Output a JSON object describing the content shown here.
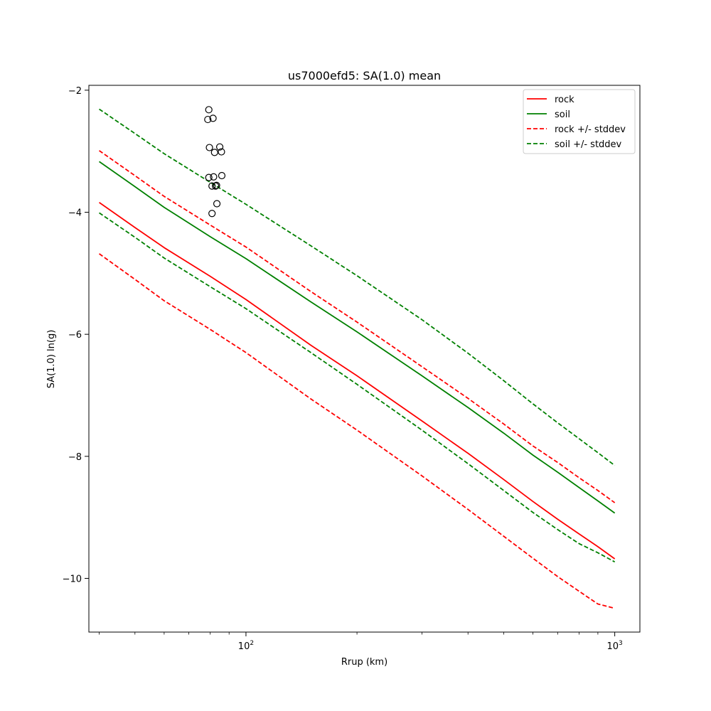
{
  "chart_data": {
    "type": "line",
    "title": "us7000efd5: SA(1.0) mean",
    "xlabel": "Rrup (km)",
    "ylabel": "SA(1.0) ln(g)",
    "xscale": "log",
    "xlim": [
      37.5,
      1170
    ],
    "ylim": [
      -10.88,
      -1.92
    ],
    "x_ticks": [
      {
        "value": 100,
        "label": "10",
        "exp": "2"
      },
      {
        "value": 1000,
        "label": "10",
        "exp": "3"
      }
    ],
    "y_ticks": [
      {
        "value": -2,
        "label": "−2"
      },
      {
        "value": -4,
        "label": "−4"
      },
      {
        "value": -6,
        "label": "−6"
      },
      {
        "value": -8,
        "label": "−8"
      },
      {
        "value": -10,
        "label": "−10"
      }
    ],
    "grid": false,
    "legend_position": "top-right",
    "x": [
      40,
      50,
      60,
      80,
      100,
      150,
      200,
      300,
      400,
      500,
      600,
      700,
      800,
      900,
      1000
    ],
    "series": [
      {
        "name": "rock",
        "color": "#ff0000",
        "style": "solid",
        "values": [
          -3.84,
          -4.25,
          -4.58,
          -5.05,
          -5.43,
          -6.18,
          -6.68,
          -7.42,
          -7.95,
          -8.38,
          -8.74,
          -9.03,
          -9.27,
          -9.48,
          -9.68
        ]
      },
      {
        "name": "soil",
        "color": "#008000",
        "style": "solid",
        "values": [
          -3.17,
          -3.58,
          -3.92,
          -4.4,
          -4.76,
          -5.47,
          -5.96,
          -6.68,
          -7.2,
          -7.62,
          -7.98,
          -8.26,
          -8.51,
          -8.73,
          -8.93
        ]
      },
      {
        "name": "rock +/- stddev",
        "color": "#ff0000",
        "style": "dashed",
        "values": [
          -2.99,
          -3.4,
          -3.74,
          -4.21,
          -4.57,
          -5.3,
          -5.8,
          -6.53,
          -7.05,
          -7.47,
          -7.83,
          -8.1,
          -8.35,
          -8.56,
          -8.76
        ]
      },
      {
        "name": "rock +/- stddev",
        "color": "#ff0000",
        "style": "dashed",
        "legend": false,
        "values": [
          -4.68,
          -5.1,
          -5.45,
          -5.92,
          -6.3,
          -7.06,
          -7.57,
          -8.32,
          -8.87,
          -9.31,
          -9.67,
          -9.97,
          -10.21,
          -10.42,
          -10.49
        ]
      },
      {
        "name": "soil +/- stddev",
        "color": "#008000",
        "style": "dashed",
        "values": [
          -2.31,
          -2.71,
          -3.04,
          -3.51,
          -3.87,
          -4.55,
          -5.04,
          -5.76,
          -6.31,
          -6.76,
          -7.14,
          -7.45,
          -7.71,
          -7.94,
          -8.15
        ]
      },
      {
        "name": "soil +/- stddev",
        "color": "#008000",
        "style": "dashed",
        "legend": false,
        "values": [
          -4.01,
          -4.41,
          -4.75,
          -5.22,
          -5.58,
          -6.3,
          -6.82,
          -7.57,
          -8.12,
          -8.56,
          -8.92,
          -9.2,
          -9.43,
          -9.58,
          -9.73
        ]
      }
    ],
    "observations": {
      "marker": "open-circle",
      "color": "#000000",
      "points": [
        {
          "x": 79.3,
          "y": -2.32
        },
        {
          "x": 78.8,
          "y": -2.48
        },
        {
          "x": 81.4,
          "y": -2.46
        },
        {
          "x": 79.6,
          "y": -2.94
        },
        {
          "x": 82.2,
          "y": -3.02
        },
        {
          "x": 84.9,
          "y": -2.93
        },
        {
          "x": 85.8,
          "y": -3.01
        },
        {
          "x": 79.3,
          "y": -3.43
        },
        {
          "x": 81.7,
          "y": -3.42
        },
        {
          "x": 86.0,
          "y": -3.4
        },
        {
          "x": 80.9,
          "y": -3.57
        },
        {
          "x": 82.7,
          "y": -3.57
        },
        {
          "x": 83.2,
          "y": -3.56
        },
        {
          "x": 83.4,
          "y": -3.86
        },
        {
          "x": 80.9,
          "y": -4.02
        }
      ]
    }
  }
}
